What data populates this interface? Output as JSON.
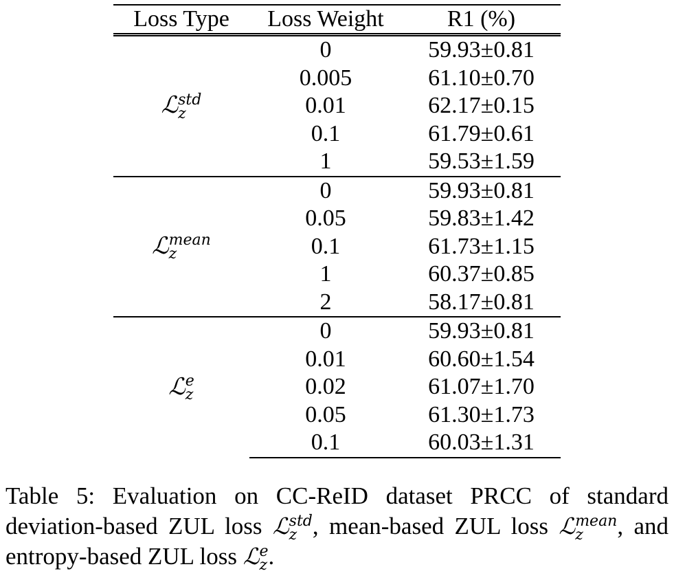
{
  "table": {
    "headers": [
      "Loss Type",
      "Loss Weight",
      "R1 (%)"
    ],
    "groups": [
      {
        "loss_symbol": "ℒ",
        "loss_sup": "std",
        "loss_sub": "z",
        "rows": [
          {
            "weight": "0",
            "r1": "59.93±0.81"
          },
          {
            "weight": "0.005",
            "r1": "61.10±0.70"
          },
          {
            "weight": "0.01",
            "r1": "62.17±0.15"
          },
          {
            "weight": "0.1",
            "r1": "61.79±0.61"
          },
          {
            "weight": "1",
            "r1": "59.53±1.59"
          }
        ]
      },
      {
        "loss_symbol": "ℒ",
        "loss_sup": "mean",
        "loss_sub": "z",
        "rows": [
          {
            "weight": "0",
            "r1": "59.93±0.81"
          },
          {
            "weight": "0.05",
            "r1": "59.83±1.42"
          },
          {
            "weight": "0.1",
            "r1": "61.73±1.15"
          },
          {
            "weight": "1",
            "r1": "60.37±0.85"
          },
          {
            "weight": "2",
            "r1": "58.17±0.81"
          }
        ]
      },
      {
        "loss_symbol": "ℒ",
        "loss_sup": "e",
        "loss_sub": "z",
        "rows": [
          {
            "weight": "0",
            "r1": "59.93±0.81"
          },
          {
            "weight": "0.01",
            "r1": "60.60±1.54"
          },
          {
            "weight": "0.02",
            "r1": "61.07±1.70"
          },
          {
            "weight": "0.05",
            "r1": "61.30±1.73"
          },
          {
            "weight": "0.1",
            "r1": "60.03±1.31"
          }
        ]
      }
    ]
  },
  "caption": {
    "part1": "Table 5: Evaluation on CC-ReID dataset PRCC of standard deviation-based ZUL loss ",
    "sym1": "ℒ",
    "sup1": "std",
    "sub1": "z",
    "part2": ", mean-based ZUL loss ",
    "sym2": "ℒ",
    "sup2": "mean",
    "sub2": "z",
    "part3": ", and entropy-based ZUL loss ",
    "sym3": "ℒ",
    "sup3": "e",
    "sub3": "z",
    "part4": "."
  }
}
